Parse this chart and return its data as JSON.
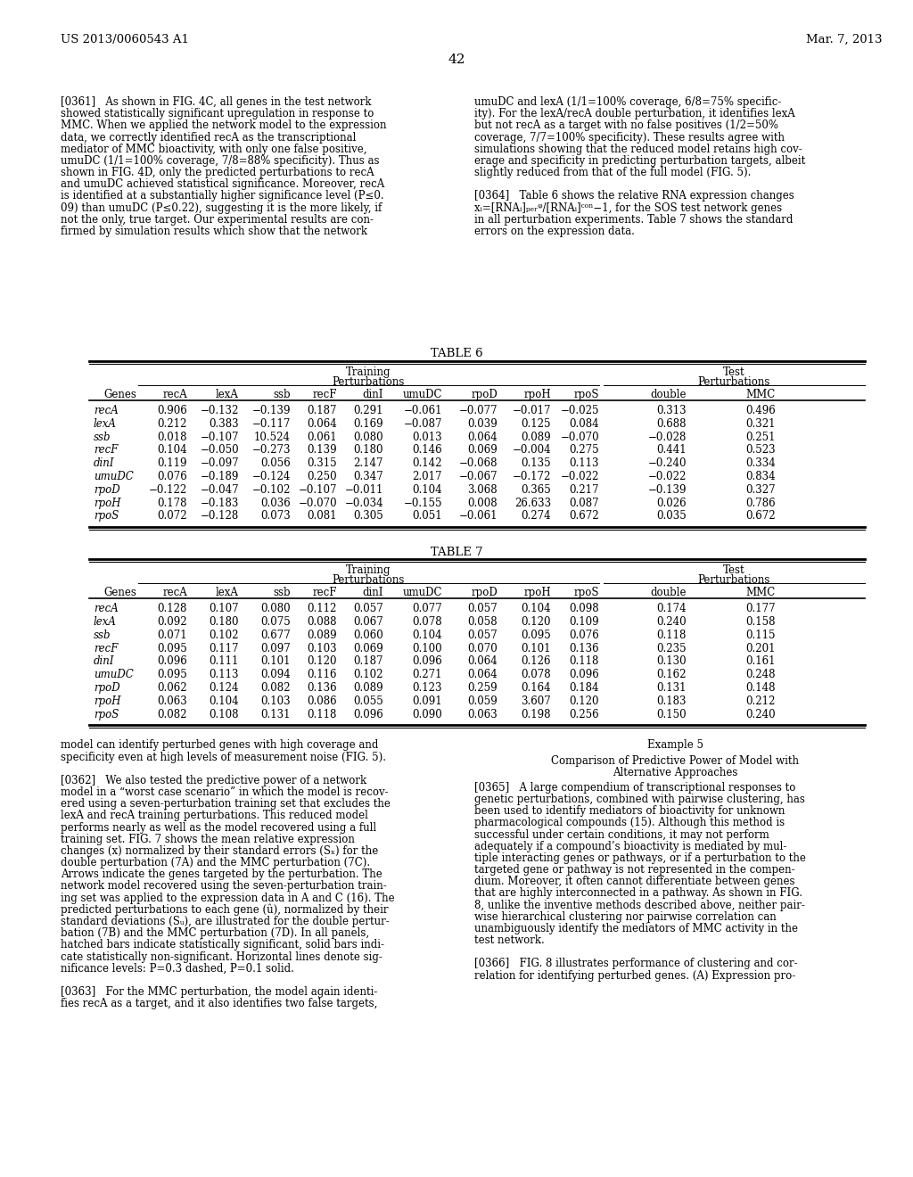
{
  "page_number": "42",
  "header_left": "US 2013/0060543 A1",
  "header_right": "Mar. 7, 2013",
  "background_color": "#ffffff",
  "table6_title": "TABLE 6",
  "table7_title": "TABLE 7",
  "table_cols": [
    "Genes",
    "recA",
    "lexA",
    "ssb",
    "recF",
    "dinI",
    "umuDC",
    "rpoD",
    "rpoH",
    "rpoS",
    "double",
    "MMC"
  ],
  "table6_data": [
    [
      "recA",
      "0.906",
      "−0.132",
      "−0.139",
      "0.187",
      "0.291",
      "−0.061",
      "−0.077",
      "−0.017",
      "−0.025",
      "0.313",
      "0.496"
    ],
    [
      "lexA",
      "0.212",
      "0.383",
      "−0.117",
      "0.064",
      "0.169",
      "−0.087",
      "0.039",
      "0.125",
      "0.084",
      "0.688",
      "0.321"
    ],
    [
      "ssb",
      "0.018",
      "−0.107",
      "10.524",
      "0.061",
      "0.080",
      "0.013",
      "0.064",
      "0.089",
      "−0.070",
      "−0.028",
      "0.251"
    ],
    [
      "recF",
      "0.104",
      "−0.050",
      "−0.273",
      "0.139",
      "0.180",
      "0.146",
      "0.069",
      "−0.004",
      "0.275",
      "0.441",
      "0.523"
    ],
    [
      "dinI",
      "0.119",
      "−0.097",
      "0.056",
      "0.315",
      "2.147",
      "0.142",
      "−0.068",
      "0.135",
      "0.113",
      "−0.240",
      "0.334"
    ],
    [
      "umuDC",
      "0.076",
      "−0.189",
      "−0.124",
      "0.250",
      "0.347",
      "2.017",
      "−0.067",
      "−0.172",
      "−0.022",
      "−0.022",
      "0.834"
    ],
    [
      "rpoD",
      "−0.122",
      "−0.047",
      "−0.102",
      "−0.107",
      "−0.011",
      "0.104",
      "3.068",
      "0.365",
      "0.217",
      "−0.139",
      "0.327"
    ],
    [
      "rpoH",
      "0.178",
      "−0.183",
      "0.036",
      "−0.070",
      "−0.034",
      "−0.155",
      "0.008",
      "26.633",
      "0.087",
      "0.026",
      "0.786"
    ],
    [
      "rpoS",
      "0.072",
      "−0.128",
      "0.073",
      "0.081",
      "0.305",
      "0.051",
      "−0.061",
      "0.274",
      "0.672",
      "0.035",
      "0.672"
    ]
  ],
  "table7_data": [
    [
      "recA",
      "0.128",
      "0.107",
      "0.080",
      "0.112",
      "0.057",
      "0.077",
      "0.057",
      "0.104",
      "0.098",
      "0.174",
      "0.177"
    ],
    [
      "lexA",
      "0.092",
      "0.180",
      "0.075",
      "0.088",
      "0.067",
      "0.078",
      "0.058",
      "0.120",
      "0.109",
      "0.240",
      "0.158"
    ],
    [
      "ssb",
      "0.071",
      "0.102",
      "0.677",
      "0.089",
      "0.060",
      "0.104",
      "0.057",
      "0.095",
      "0.076",
      "0.118",
      "0.115"
    ],
    [
      "recF",
      "0.095",
      "0.117",
      "0.097",
      "0.103",
      "0.069",
      "0.100",
      "0.070",
      "0.101",
      "0.136",
      "0.235",
      "0.201"
    ],
    [
      "dinI",
      "0.096",
      "0.111",
      "0.101",
      "0.120",
      "0.187",
      "0.096",
      "0.064",
      "0.126",
      "0.118",
      "0.130",
      "0.161"
    ],
    [
      "umuDC",
      "0.095",
      "0.113",
      "0.094",
      "0.116",
      "0.102",
      "0.271",
      "0.064",
      "0.078",
      "0.096",
      "0.162",
      "0.248"
    ],
    [
      "rpoD",
      "0.062",
      "0.124",
      "0.082",
      "0.136",
      "0.089",
      "0.123",
      "0.259",
      "0.164",
      "0.184",
      "0.131",
      "0.148"
    ],
    [
      "rpoH",
      "0.063",
      "0.104",
      "0.103",
      "0.086",
      "0.055",
      "0.091",
      "0.059",
      "3.607",
      "0.120",
      "0.183",
      "0.212"
    ],
    [
      "rpoS",
      "0.082",
      "0.108",
      "0.131",
      "0.118",
      "0.096",
      "0.090",
      "0.063",
      "0.198",
      "0.256",
      "0.150",
      "0.240"
    ]
  ],
  "left_col_lines_top": [
    "[0361]   As shown in FIG. 4C, all genes in the test network",
    "showed statistically significant upregulation in response to",
    "MMC. When we applied the network model to the expression",
    "data, we correctly identified recA as the transcriptional",
    "mediator of MMC bioactivity, with only one false positive,",
    "umuDC (1/1=100% coverage, 7/8=88% specificity). Thus as",
    "shown in FIG. 4D, only the predicted perturbations to recA",
    "and umuDC achieved statistical significance. Moreover, recA",
    "is identified at a substantially higher significance level (P≤0.",
    "09) than umuDC (P≤0.22), suggesting it is the more likely, if",
    "not the only, true target. Our experimental results are con-",
    "firmed by simulation results which show that the network"
  ],
  "right_col_lines_top": [
    "umuDC and lexA (1/1=100% coverage, 6/8=75% specific-",
    "ity). For the lexA/recA double perturbation, it identifies lexA",
    "but not recA as a target with no false positives (1/2=50%",
    "coverage, 7/7=100% specificity). These results agree with",
    "simulations showing that the reduced model retains high cov-",
    "erage and specificity in predicting perturbation targets, albeit",
    "slightly reduced from that of the full model (FIG. 5).",
    "",
    "[0364]   Table 6 shows the relative RNA expression changes",
    "xᵢ=[RNAᵢ]ₚₑᵣᵠ/[RNAᵢ]ᶜᵒⁿ−1, for the SOS test network genes",
    "in all perturbation experiments. Table 7 shows the standard",
    "errors on the expression data."
  ],
  "left_col_lines_bot": [
    "model can identify perturbed genes with high coverage and",
    "specificity even at high levels of measurement noise (FIG. 5).",
    "",
    "[0362]   We also tested the predictive power of a network",
    "model in a “worst case scenario” in which the model is recov-",
    "ered using a seven-perturbation training set that excludes the",
    "lexA and recA training perturbations. This reduced model",
    "performs nearly as well as the model recovered using a full",
    "training set. FIG. 7 shows the mean relative expression",
    "changes (x) normalized by their standard errors (Sₓ) for the",
    "double perturbation (7A) and the MMC perturbation (7C).",
    "Arrows indicate the genes targeted by the perturbation. The",
    "network model recovered using the seven-perturbation train-",
    "ing set was applied to the expression data in A and C (16). The",
    "predicted perturbations to each gene (û), normalized by their",
    "standard deviations (Sᵤ), are illustrated for the double pertur-",
    "bation (7B) and the MMC perturbation (7D). In all panels,",
    "hatched bars indicate statistically significant, solid bars indi-",
    "cate statistically non-significant. Horizontal lines denote sig-",
    "nificance levels: P=0.3 dashed, P=0.1 solid.",
    "",
    "[0363]   For the MMC perturbation, the model again identi-",
    "fies recA as a target, and it also identifies two false targets,"
  ],
  "right_col_lines_bot_1": "Example 5",
  "right_col_lines_bot_2a": "Comparison of Predictive Power of Model with",
  "right_col_lines_bot_2b": "Alternative Approaches",
  "right_col_lines_bot": [
    "[0365]   A large compendium of transcriptional responses to",
    "genetic perturbations, combined with pairwise clustering, has",
    "been used to identify mediators of bioactivity for unknown",
    "pharmacological compounds (15). Although this method is",
    "successful under certain conditions, it may not perform",
    "adequately if a compound’s bioactivity is mediated by mul-",
    "tiple interacting genes or pathways, or if a perturbation to the",
    "targeted gene or pathway is not represented in the compen-",
    "dium. Moreover, it often cannot differentiate between genes",
    "that are highly interconnected in a pathway. As shown in FIG.",
    "8, unlike the inventive methods described above, neither pair-",
    "wise hierarchical clustering nor pairwise correlation can",
    "unambiguously identify the mediators of MMC activity in the",
    "test network.",
    "",
    "[0366]   FIG. 8 illustrates performance of clustering and cor-",
    "relation for identifying perturbed genes. (A) Expression pro-"
  ]
}
